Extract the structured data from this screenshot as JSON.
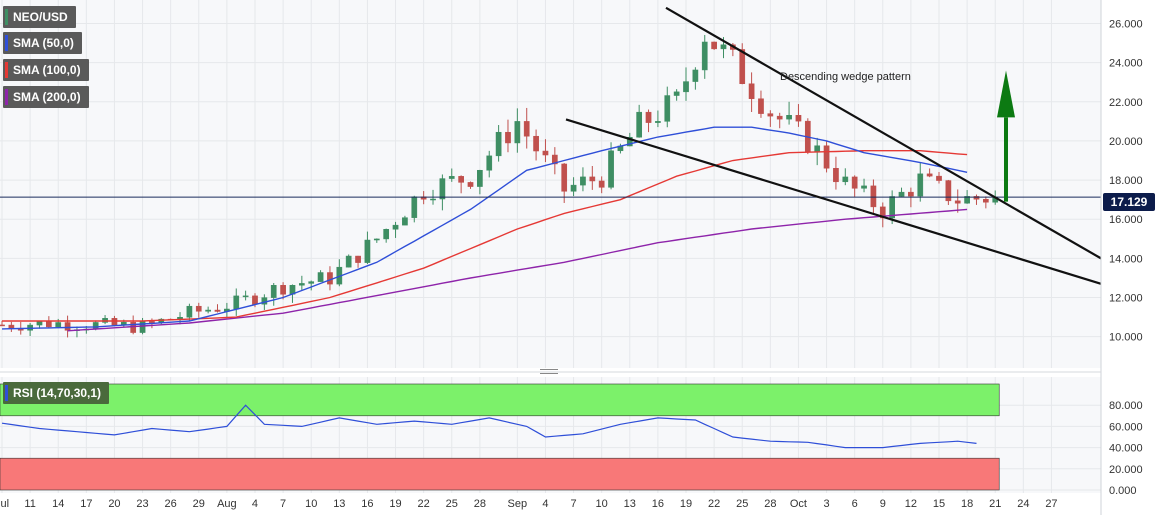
{
  "legend": {
    "symbol": "NEO/USD",
    "sma50": "SMA (50,0)",
    "sma100": "SMA (100,0)",
    "sma200": "SMA (200,0)",
    "rsi": "RSI (14,70,30,1)"
  },
  "colors": {
    "up": "#3e8e63",
    "down": "#c0504d",
    "sma50": "#2f4fd8",
    "sma100": "#e53935",
    "sma200": "#8e24aa",
    "rsi_line": "#2f4fd8",
    "overbought_zone": "#7cf16a",
    "oversold_zone": "#f87878",
    "arrow": "#0c7a12"
  },
  "current_price": "17.129",
  "annotation": "Descending wedge pattern",
  "chart_data": {
    "type": "line",
    "panes": [
      "price",
      "rsi"
    ],
    "price_axis": {
      "ticks": [
        "26.000",
        "24.000",
        "22.000",
        "20.000",
        "18.000",
        "16.000",
        "14.000",
        "12.000",
        "10.000"
      ],
      "tick_values": [
        26,
        24,
        22,
        20,
        18,
        16,
        14,
        12,
        10
      ],
      "ylim": [
        8.4,
        27.2
      ]
    },
    "rsi_axis": {
      "ticks": [
        "80.000",
        "60.000",
        "40.000",
        "20.000",
        "0.000"
      ],
      "tick_values": [
        80,
        60,
        40,
        20,
        0
      ],
      "ylim": [
        0,
        100
      ],
      "overbought": 70,
      "oversold": 30
    },
    "x_axis": {
      "labels": [
        "Jul",
        "11",
        "14",
        "17",
        "20",
        "23",
        "26",
        "29",
        "Aug",
        "4",
        "7",
        "10",
        "13",
        "16",
        "19",
        "22",
        "25",
        "28",
        "Sep",
        "4",
        "7",
        "10",
        "13",
        "16",
        "19",
        "22",
        "25",
        "28",
        "Oct",
        "3",
        "6",
        "9",
        "12",
        "15",
        "18",
        "21",
        "24",
        "27"
      ],
      "label_day_index": [
        0,
        3,
        6,
        9,
        12,
        15,
        18,
        21,
        24,
        27,
        30,
        33,
        36,
        39,
        42,
        45,
        48,
        51,
        55,
        58,
        61,
        64,
        67,
        70,
        73,
        76,
        79,
        82,
        85,
        88,
        91,
        94,
        97,
        100,
        103,
        106,
        109,
        112
      ],
      "last_candle_index": 106
    },
    "close_points": [
      [
        0,
        10.6
      ],
      [
        5,
        10.7
      ],
      [
        10,
        10.6
      ],
      [
        15,
        10.5
      ],
      [
        20,
        11.2
      ],
      [
        25,
        11.7
      ],
      [
        30,
        12.6
      ],
      [
        35,
        13.0
      ],
      [
        40,
        15.0
      ],
      [
        45,
        17.5
      ],
      [
        50,
        18.2
      ],
      [
        55,
        21.0
      ],
      [
        60,
        17.5
      ],
      [
        64,
        18.2
      ],
      [
        68,
        20.8
      ],
      [
        72,
        22.0
      ],
      [
        75,
        25.5
      ],
      [
        78,
        24.0
      ],
      [
        82,
        21.5
      ],
      [
        86,
        20.0
      ],
      [
        90,
        17.8
      ],
      [
        94,
        16.5
      ],
      [
        98,
        18.0
      ],
      [
        102,
        17.0
      ],
      [
        106,
        17.129
      ]
    ],
    "sma50_points": [
      [
        0,
        10.4
      ],
      [
        10,
        10.5
      ],
      [
        20,
        10.8
      ],
      [
        30,
        12.0
      ],
      [
        40,
        13.8
      ],
      [
        50,
        16.5
      ],
      [
        56,
        18.5
      ],
      [
        64,
        19.5
      ],
      [
        70,
        20.2
      ],
      [
        76,
        20.7
      ],
      [
        80,
        20.7
      ],
      [
        84,
        20.4
      ],
      [
        88,
        20.0
      ],
      [
        92,
        19.4
      ],
      [
        98,
        18.9
      ],
      [
        103,
        18.4
      ]
    ],
    "sma100_points": [
      [
        0,
        10.8
      ],
      [
        15,
        10.8
      ],
      [
        25,
        11.0
      ],
      [
        35,
        12.0
      ],
      [
        45,
        13.5
      ],
      [
        55,
        15.5
      ],
      [
        60,
        16.3
      ],
      [
        66,
        17.0
      ],
      [
        72,
        18.2
      ],
      [
        78,
        19.0
      ],
      [
        84,
        19.4
      ],
      [
        92,
        19.5
      ],
      [
        98,
        19.5
      ],
      [
        103,
        19.3
      ]
    ],
    "sma200_points": [
      [
        7,
        10.3
      ],
      [
        20,
        10.7
      ],
      [
        30,
        11.2
      ],
      [
        40,
        12.1
      ],
      [
        50,
        13.0
      ],
      [
        60,
        13.8
      ],
      [
        70,
        14.8
      ],
      [
        80,
        15.5
      ],
      [
        90,
        16.0
      ],
      [
        103,
        16.5
      ]
    ],
    "wedge_upper_line": [
      [
        0.0,
        26.8
      ],
      [
        1.0,
        14.0
      ]
    ],
    "wedge_lower_line": [
      [
        0.0,
        21.1
      ],
      [
        1.0,
        12.7
      ]
    ],
    "rsi_points": [
      [
        0,
        63
      ],
      [
        4,
        58
      ],
      [
        8,
        55
      ],
      [
        12,
        52
      ],
      [
        16,
        58
      ],
      [
        20,
        55
      ],
      [
        24,
        60
      ],
      [
        26,
        80
      ],
      [
        28,
        62
      ],
      [
        32,
        60
      ],
      [
        36,
        68
      ],
      [
        40,
        62
      ],
      [
        44,
        65
      ],
      [
        48,
        62
      ],
      [
        52,
        68
      ],
      [
        56,
        60
      ],
      [
        58,
        50
      ],
      [
        62,
        53
      ],
      [
        66,
        62
      ],
      [
        70,
        68
      ],
      [
        74,
        66
      ],
      [
        76,
        58
      ],
      [
        78,
        50
      ],
      [
        82,
        46
      ],
      [
        86,
        45
      ],
      [
        90,
        40
      ],
      [
        94,
        40
      ],
      [
        98,
        44
      ],
      [
        102,
        46
      ],
      [
        104,
        44
      ]
    ]
  }
}
